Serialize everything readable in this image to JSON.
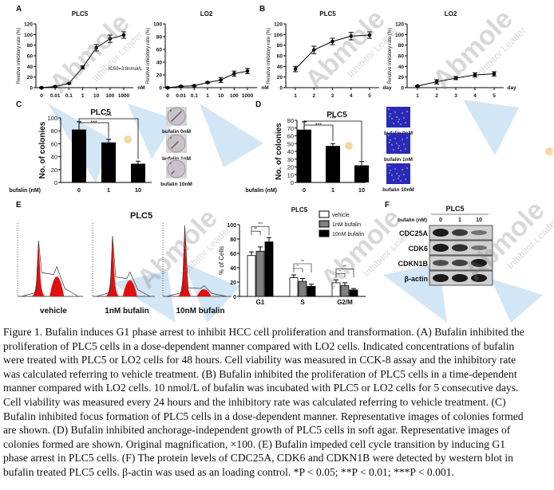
{
  "figure": {
    "panel_labels": [
      "A",
      "B",
      "C",
      "D",
      "E",
      "F"
    ],
    "watermark": {
      "brand": "Abmole",
      "tagline": "Inhibitor Leader"
    },
    "colors": {
      "bar_black": "#000000",
      "bar_gray": "#808080",
      "bar_white": "#ffffff",
      "histogram_red": "#e01010",
      "soft_agar_blue": "#2a2ab8",
      "watermark_blue": "#7fb8e6"
    }
  },
  "chart_data": [
    {
      "id": "A-PLC5",
      "type": "line",
      "title": "PLC5",
      "xlabel": "nM",
      "ylabel": "Relative inhibitory rate (%)",
      "categories": [
        "0",
        "0.01",
        "0.1",
        "1",
        "10",
        "100",
        "1000"
      ],
      "values": [
        0,
        2,
        8,
        38,
        75,
        92,
        99
      ],
      "errors": [
        1,
        1,
        1,
        3,
        6,
        7,
        6
      ],
      "ylim": [
        0,
        120
      ],
      "yticks": [
        0,
        20,
        40,
        60,
        80,
        100,
        120
      ],
      "annotation": "IC50=3.8nmol/L"
    },
    {
      "id": "A-LO2",
      "type": "line",
      "title": "LO2",
      "xlabel": "nM",
      "ylabel": "Relative inhibitory rate (%)",
      "categories": [
        "0",
        "0.01",
        "0.1",
        "1",
        "10",
        "100",
        "1000"
      ],
      "values": [
        0,
        2,
        3,
        8,
        12,
        22,
        26
      ],
      "errors": [
        1,
        1,
        1,
        1,
        4,
        4,
        4
      ],
      "ylim": [
        0,
        100
      ],
      "yticks": [
        0,
        20,
        40,
        60,
        80,
        100
      ]
    },
    {
      "id": "B-PLC5",
      "type": "line",
      "title": "PLC5",
      "xlabel": "day",
      "ylabel": "Relative inhibitory rate (%)",
      "categories": [
        "1",
        "2",
        "3",
        "4",
        "5"
      ],
      "values": [
        35,
        71,
        87,
        97,
        99
      ],
      "errors": [
        5,
        7,
        6,
        7,
        6
      ],
      "ylim": [
        0,
        120
      ],
      "yticks": [
        0,
        20,
        40,
        60,
        80,
        100,
        120
      ]
    },
    {
      "id": "B-LO2",
      "type": "line",
      "title": "LO2",
      "xlabel": "day",
      "ylabel": "Relative inhibitory rate (%)",
      "categories": [
        "1",
        "2",
        "3",
        "4",
        "5"
      ],
      "values": [
        3,
        11,
        18,
        24,
        26
      ],
      "errors": [
        1,
        4,
        3,
        4,
        4
      ],
      "ylim": [
        0,
        120
      ],
      "yticks": [
        0,
        20,
        40,
        60,
        80,
        100,
        120
      ]
    },
    {
      "id": "C",
      "type": "bar",
      "title": "PLC5",
      "xlabel": "bufalin (nM)",
      "ylabel": "No. of colonies",
      "categories": [
        "0",
        "1",
        "10"
      ],
      "values": [
        82,
        62,
        29
      ],
      "errors": [
        12,
        5,
        4
      ],
      "ylim": [
        0,
        100
      ],
      "yticks": [
        0,
        20,
        40,
        60,
        80,
        100
      ],
      "significance": [
        "***",
        "***"
      ],
      "images": [
        "bufalin 0nM",
        "bufalin 1nM",
        "bufalin 10nM"
      ]
    },
    {
      "id": "D",
      "type": "bar",
      "title": "PLC5",
      "xlabel": "bufalin (nM)",
      "ylabel": "No. of colonies",
      "categories": [
        "0",
        "1",
        "10"
      ],
      "values": [
        68,
        47,
        22
      ],
      "errors": [
        10,
        3,
        5
      ],
      "ylim": [
        0,
        80
      ],
      "yticks": [
        0,
        10,
        20,
        30,
        40,
        50,
        60,
        70,
        80
      ],
      "significance": [
        "***",
        "***"
      ],
      "images": [
        "bufalin 0nM",
        "bufalin 1nM",
        "bufalin 10nM"
      ]
    },
    {
      "id": "E-hist",
      "type": "histogram",
      "title": "PLC5",
      "panels": [
        "vehicle",
        "1nM bufalin",
        "10nM bufalin"
      ],
      "g1_peak": [
        0.78,
        0.85,
        1.0
      ],
      "g2_peak": [
        0.22,
        0.18,
        0.08
      ]
    },
    {
      "id": "E-bar",
      "type": "bar",
      "title": "PLC5",
      "ylabel": "% of Cells",
      "categories": [
        "G1",
        "S",
        "G2/M"
      ],
      "series": [
        {
          "name": "vehicle",
          "values": [
            57,
            26,
            19
          ],
          "errors": [
            5,
            4,
            4
          ]
        },
        {
          "name": "1nM bufalin",
          "values": [
            63,
            21,
            15
          ],
          "errors": [
            6,
            4,
            4
          ]
        },
        {
          "name": "10nM bufalin",
          "values": [
            76,
            14,
            9
          ],
          "errors": [
            6,
            3,
            2
          ]
        }
      ],
      "ylim": [
        0,
        100
      ],
      "yticks": [
        0,
        20,
        40,
        60,
        80,
        100
      ],
      "significance": [
        [
          "**",
          "***"
        ],
        [
          "*",
          "**"
        ],
        [
          "*",
          "**"
        ]
      ]
    },
    {
      "id": "F",
      "type": "western_blot",
      "title": "PLC5",
      "condition_label": "bufalin (nM)",
      "lanes": [
        "0",
        "1",
        "10"
      ],
      "proteins": [
        "CDC25A",
        "CDK6",
        "CDKN1B",
        "β-actin"
      ],
      "band_intensity": [
        [
          1.0,
          0.75,
          0.35
        ],
        [
          1.0,
          0.85,
          0.35
        ],
        [
          0.6,
          0.7,
          1.0
        ],
        [
          1.0,
          1.0,
          1.0
        ]
      ]
    }
  ],
  "caption": {
    "lines": [
      "Figure 1. Bufalin induces G1 phase arrest to inhibit HCC cell proliferation and transformation. (A) Bufalin inhibited the",
      "proliferation of PLC5 cells in a dose-dependent manner compared with LO2 cells. Indicated concentrations of bufalin",
      "were treated with PLC5 or LO2 cells for 48 hours. Cell viability was measured in CCK-8 assay and the inhibitory rate",
      "was calculated referring to vehicle treatment. (B) Bufalin inhibited the proliferation of PLC5 cells in a time-dependent",
      "manner compared with LO2 cells. 10 nmol/L of bufalin was incubated with PLC5 or LO2 cells for 5 consecutive days.",
      "Cell viability was measured every 24 hours and the inhibitory rate was calculated referring to vehicle treatment. (C)",
      "Bufalin inhibited focus formation of PLC5 cells in a dose-dependent manner. Representative images of colonies formed",
      "are shown. (D) Bufalin inhibited anchorage-independent growth of PLC5 cells in soft agar. Representative images of",
      "colonies formed are shown. Original magnification, ×100. (E) Bufalin impeded cell cycle transition by inducing G1",
      "phase arrest in PLC5 cells. (F) The protein levels of CDC25A, CDK6 and CDKN1B were detected by western blot in",
      "bufalin treated PLC5 cells. β-actin was used as an loading control. *P < 0.05; **P < 0.01; ***P < 0.001."
    ]
  }
}
